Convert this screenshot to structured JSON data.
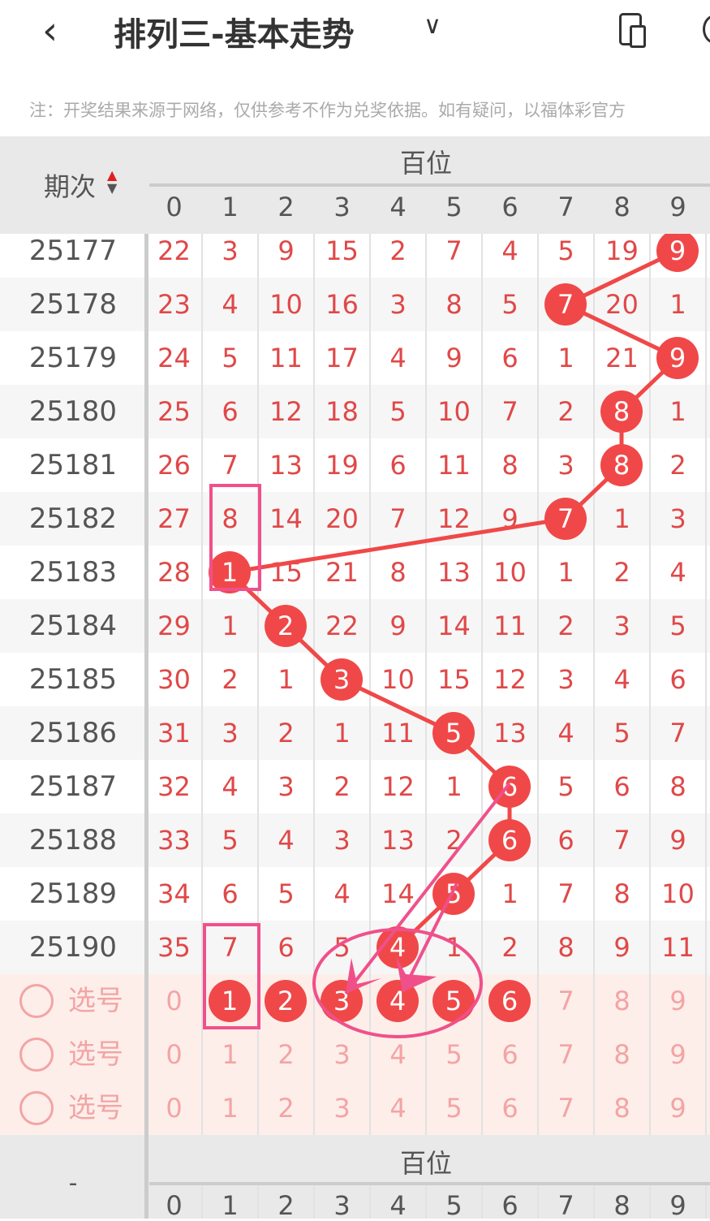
{
  "header": {
    "back_icon": "chevron-left-icon",
    "title": "排列三-基本走势",
    "dropdown_icon": "chevron-down-icon",
    "device_icon": "device-rotate-icon"
  },
  "note": "注：开奖结果来源于网络，仅供参考不作为兑奖依据。如有疑问，以福体彩官方",
  "table": {
    "period_header": "期次",
    "group_header": "百位",
    "digits": [
      "0",
      "1",
      "2",
      "3",
      "4",
      "5",
      "6",
      "7",
      "8",
      "9"
    ],
    "rows": [
      {
        "period": "25177",
        "cells": [
          "22",
          "3",
          "9",
          "15",
          "2",
          "7",
          "4",
          "5",
          "19",
          "9"
        ],
        "hit": 9
      },
      {
        "period": "25178",
        "cells": [
          "23",
          "4",
          "10",
          "16",
          "3",
          "8",
          "5",
          "7",
          "20",
          "1"
        ],
        "hit": 7
      },
      {
        "period": "25179",
        "cells": [
          "24",
          "5",
          "11",
          "17",
          "4",
          "9",
          "6",
          "1",
          "21",
          "9"
        ],
        "hit": 9
      },
      {
        "period": "25180",
        "cells": [
          "25",
          "6",
          "12",
          "18",
          "5",
          "10",
          "7",
          "2",
          "8",
          "1"
        ],
        "hit": 8
      },
      {
        "period": "25181",
        "cells": [
          "26",
          "7",
          "13",
          "19",
          "6",
          "11",
          "8",
          "3",
          "8",
          "2"
        ],
        "hit": 8
      },
      {
        "period": "25182",
        "cells": [
          "27",
          "8",
          "14",
          "20",
          "7",
          "12",
          "9",
          "7",
          "1",
          "3"
        ],
        "hit": 7
      },
      {
        "period": "25183",
        "cells": [
          "28",
          "1",
          "15",
          "21",
          "8",
          "13",
          "10",
          "1",
          "2",
          "4"
        ],
        "hit": 1
      },
      {
        "period": "25184",
        "cells": [
          "29",
          "1",
          "2",
          "22",
          "9",
          "14",
          "11",
          "2",
          "3",
          "5"
        ],
        "hit": 2
      },
      {
        "period": "25185",
        "cells": [
          "30",
          "2",
          "1",
          "3",
          "10",
          "15",
          "12",
          "3",
          "4",
          "6"
        ],
        "hit": 3
      },
      {
        "period": "25186",
        "cells": [
          "31",
          "3",
          "2",
          "1",
          "11",
          "5",
          "13",
          "4",
          "5",
          "7"
        ],
        "hit": 5
      },
      {
        "period": "25187",
        "cells": [
          "32",
          "4",
          "3",
          "2",
          "12",
          "1",
          "6",
          "5",
          "6",
          "8"
        ],
        "hit": 6
      },
      {
        "period": "25188",
        "cells": [
          "33",
          "5",
          "4",
          "3",
          "13",
          "2",
          "6",
          "6",
          "7",
          "9"
        ],
        "hit": 6
      },
      {
        "period": "25189",
        "cells": [
          "34",
          "6",
          "5",
          "4",
          "14",
          "5",
          "1",
          "7",
          "8",
          "10"
        ],
        "hit": 5
      },
      {
        "period": "25190",
        "cells": [
          "35",
          "7",
          "6",
          "5",
          "4",
          "1",
          "2",
          "8",
          "9",
          "11"
        ],
        "hit": 4
      }
    ],
    "select_rows": [
      {
        "label": "选号",
        "selected": [
          1,
          2,
          3,
          4,
          5,
          6
        ]
      },
      {
        "label": "选号",
        "selected": []
      },
      {
        "label": "选号",
        "selected": []
      }
    ],
    "footer_period": "-"
  },
  "colors": {
    "ball": "#f04848",
    "miss_text": "#e04848",
    "annotation": "#f0508a",
    "select_bg": "#fdeeea"
  }
}
